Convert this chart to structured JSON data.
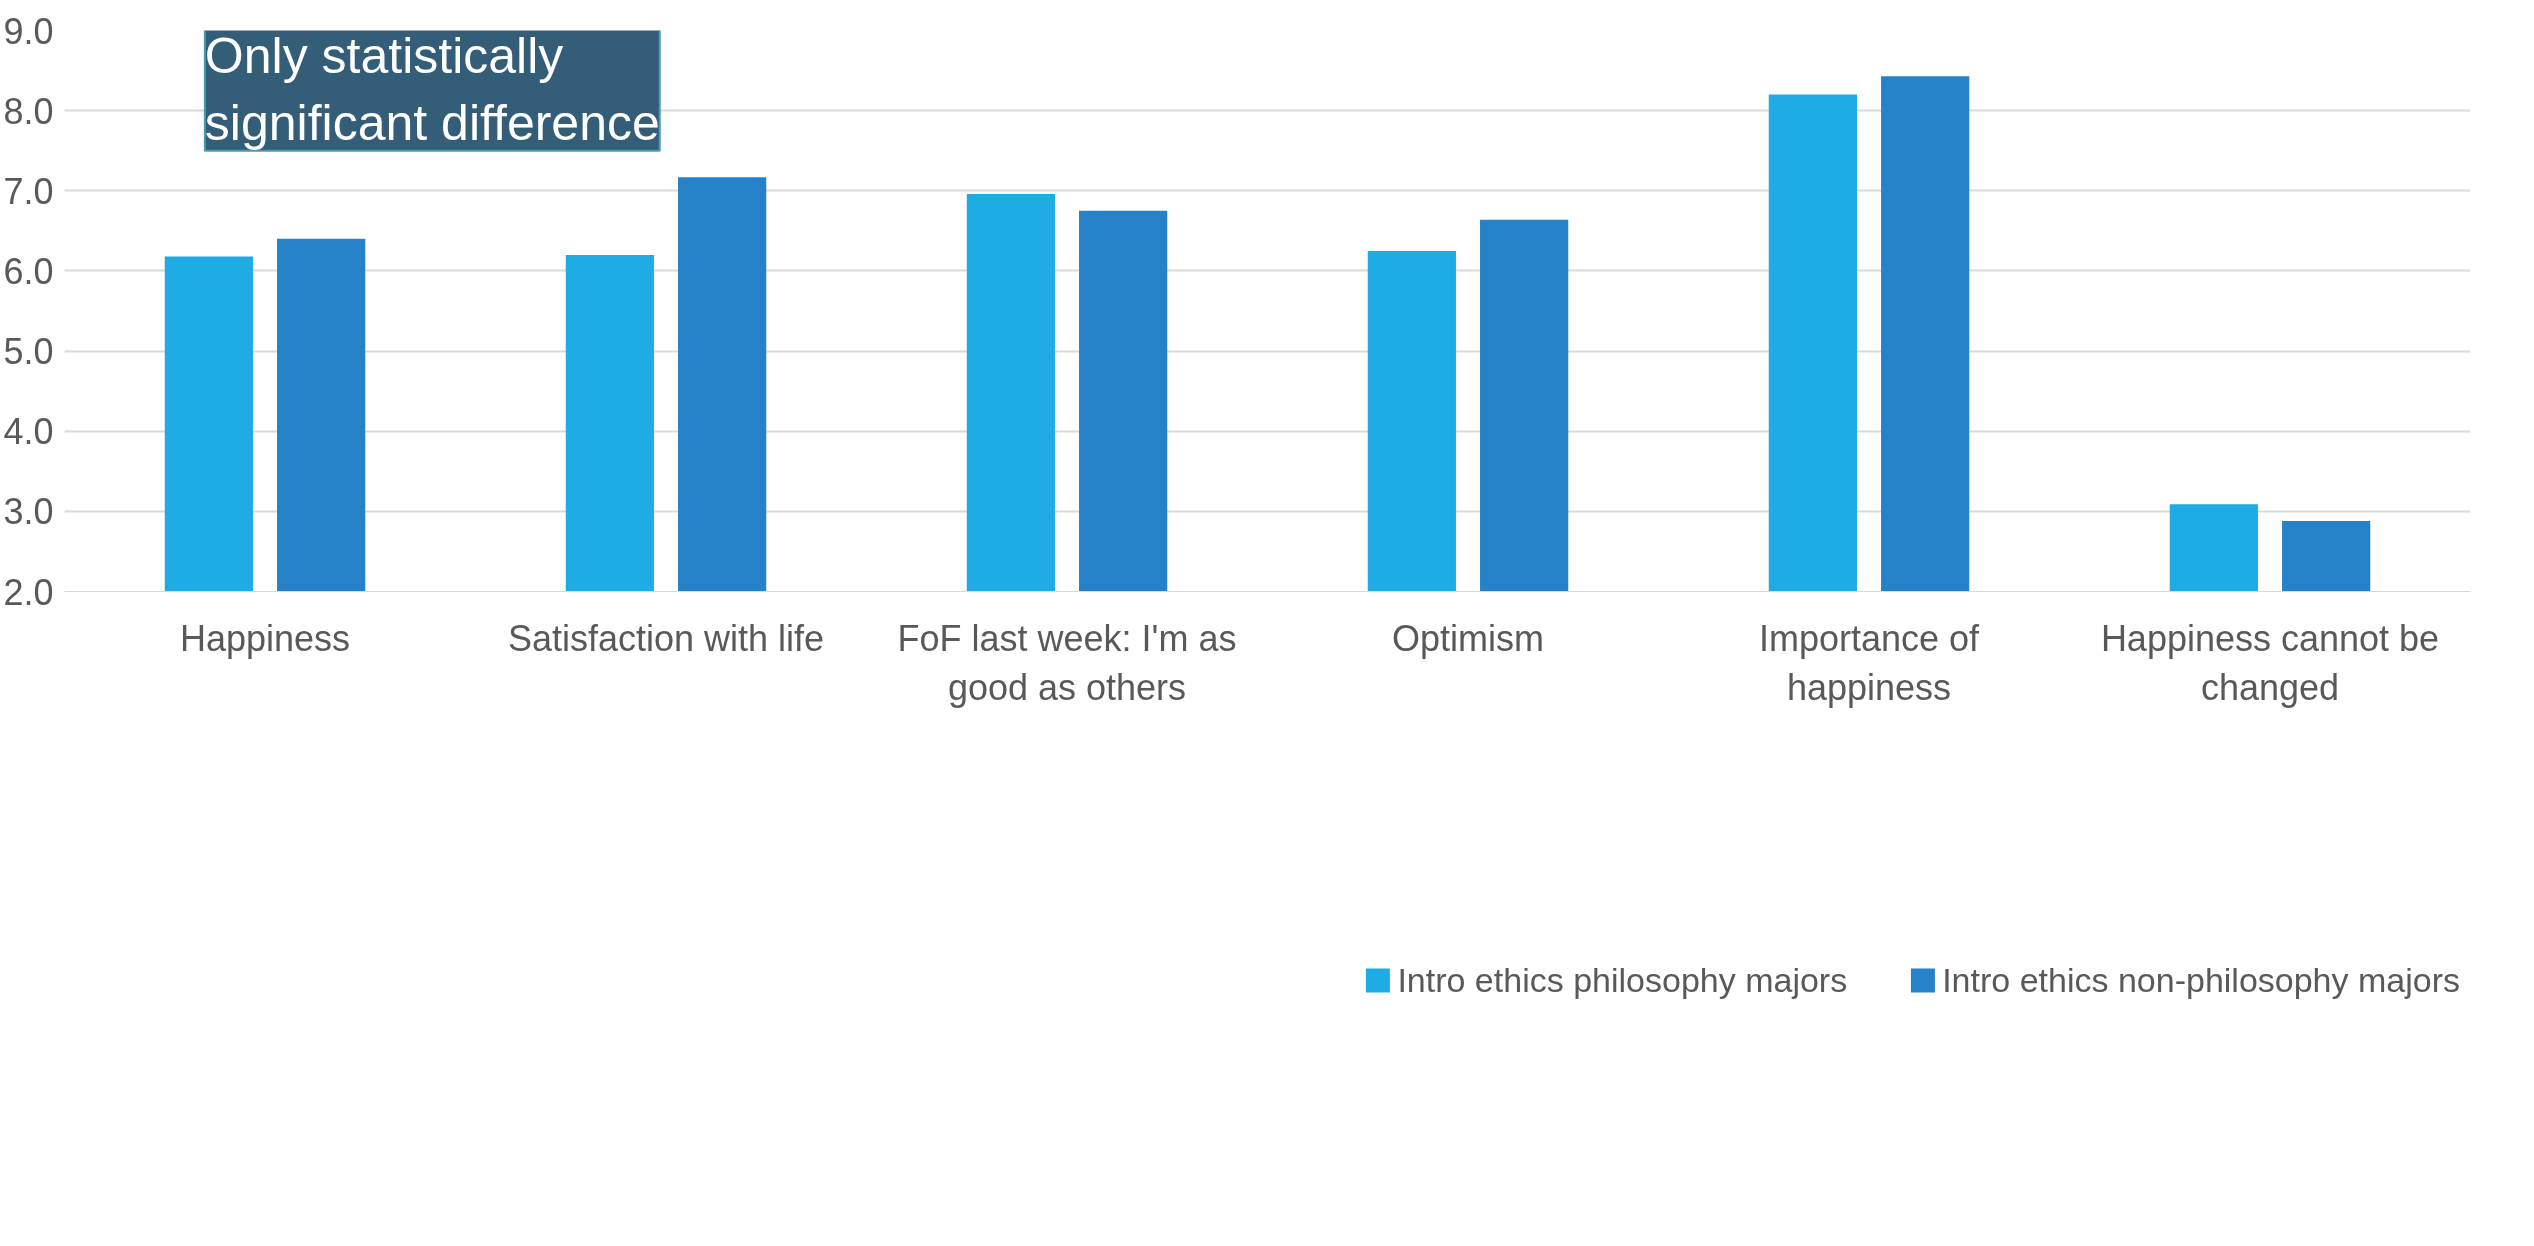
{
  "chart_data": {
    "type": "bar",
    "categories": [
      "Happiness",
      "Satisfaction with life",
      "FoF last week: I'm as good as others",
      "Optimism",
      "Importance of happiness",
      "Happiness cannot be changed"
    ],
    "series": [
      {
        "name": "Intro ethics philosophy majors",
        "color": "#1fabe3",
        "values": [
          6.18,
          6.2,
          6.96,
          6.25,
          8.2,
          3.09
        ]
      },
      {
        "name": "Intro ethics non-philosophy majors",
        "color": "#2582c8",
        "values": [
          6.4,
          7.17,
          6.75,
          6.64,
          8.43,
          2.88
        ]
      }
    ],
    "ylim": [
      2,
      9
    ],
    "yticks": [
      {
        "value": 2,
        "label": "2.0"
      },
      {
        "value": 3,
        "label": "3.0"
      },
      {
        "value": 4,
        "label": "4.0"
      },
      {
        "value": 5,
        "label": "5.0"
      },
      {
        "value": 6,
        "label": "6.0"
      },
      {
        "value": 7,
        "label": "7.0"
      },
      {
        "value": 8,
        "label": "8.0"
      },
      {
        "value": 9,
        "label": "9.0"
      }
    ],
    "grid": "y",
    "legend": "bottom",
    "annotations": [
      "Only statistically significant difference"
    ]
  }
}
